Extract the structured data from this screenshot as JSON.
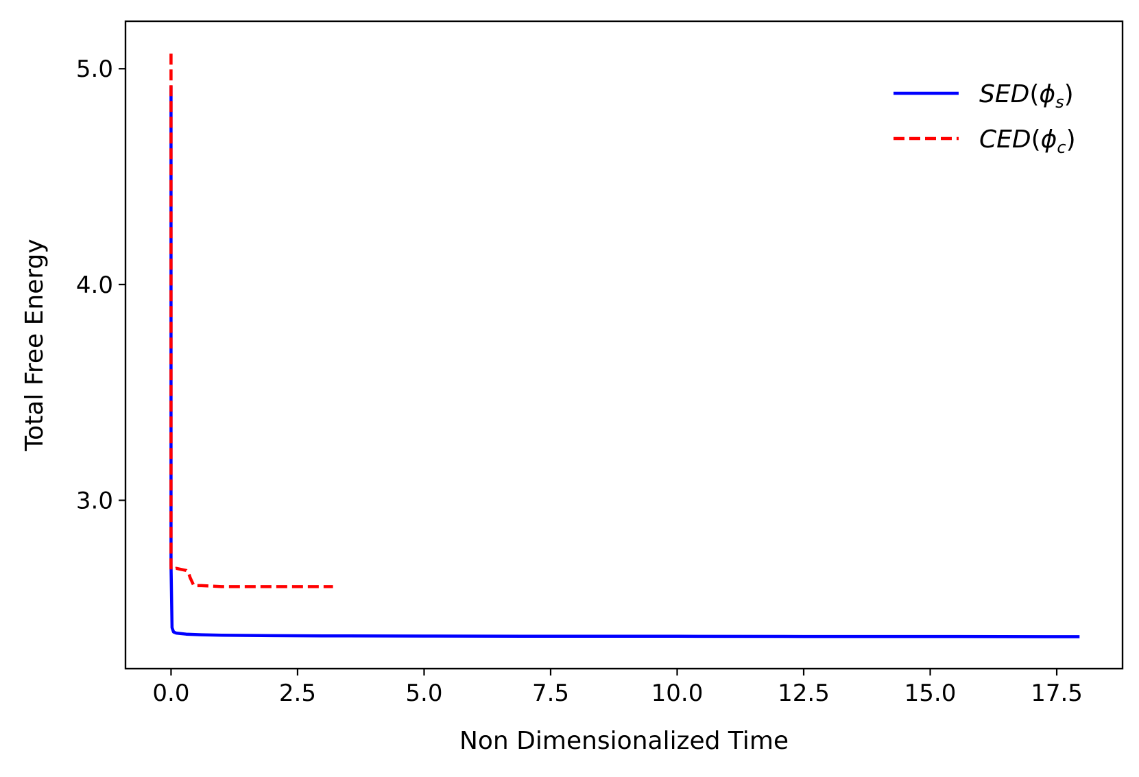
{
  "chart_data": {
    "type": "line",
    "xlabel": "Non Dimensionalized Time",
    "ylabel": "Total Free Energy",
    "xlim": [
      -0.9,
      18.8
    ],
    "ylim": [
      2.22,
      5.22
    ],
    "xticks": [
      0.0,
      2.5,
      5.0,
      7.5,
      10.0,
      12.5,
      15.0,
      17.5
    ],
    "xtick_labels": [
      "0.0",
      "2.5",
      "5.0",
      "7.5",
      "10.0",
      "12.5",
      "15.0",
      "17.5"
    ],
    "yticks": [
      3.0,
      4.0,
      5.0
    ],
    "ytick_labels": [
      "3.0",
      "4.0",
      "5.0"
    ],
    "grid": false,
    "legend_position": "top-right",
    "series": [
      {
        "name": "SED(ϕs)",
        "color": "#0000ff",
        "style": "solid",
        "x": [
          0.0,
          0.0,
          0.02,
          0.05,
          0.1,
          0.3,
          0.6,
          1.0,
          2.0,
          3.0,
          5.0,
          7.5,
          10.0,
          12.5,
          15.0,
          17.95
        ],
        "y": [
          4.92,
          2.7,
          2.41,
          2.39,
          2.385,
          2.38,
          2.377,
          2.375,
          2.373,
          2.372,
          2.371,
          2.37,
          2.37,
          2.369,
          2.369,
          2.368
        ]
      },
      {
        "name": "CED(ϕc)",
        "color": "#ff0000",
        "style": "dashed",
        "x": [
          0.0,
          0.0,
          0.02,
          0.1,
          0.2,
          0.3,
          0.35,
          0.38,
          0.42,
          0.45,
          0.6,
          1.0,
          2.0,
          3.2
        ],
        "y": [
          5.07,
          2.68,
          2.68,
          2.685,
          2.68,
          2.675,
          2.66,
          2.64,
          2.62,
          2.605,
          2.605,
          2.6,
          2.6,
          2.6
        ]
      }
    ]
  },
  "legend": {
    "items": [
      {
        "base": "SED",
        "open": "(",
        "phi": "ϕ",
        "sub": "s",
        "close": ")"
      },
      {
        "base": "CED",
        "open": "(",
        "phi": "ϕ",
        "sub": "c",
        "close": ")"
      }
    ]
  }
}
